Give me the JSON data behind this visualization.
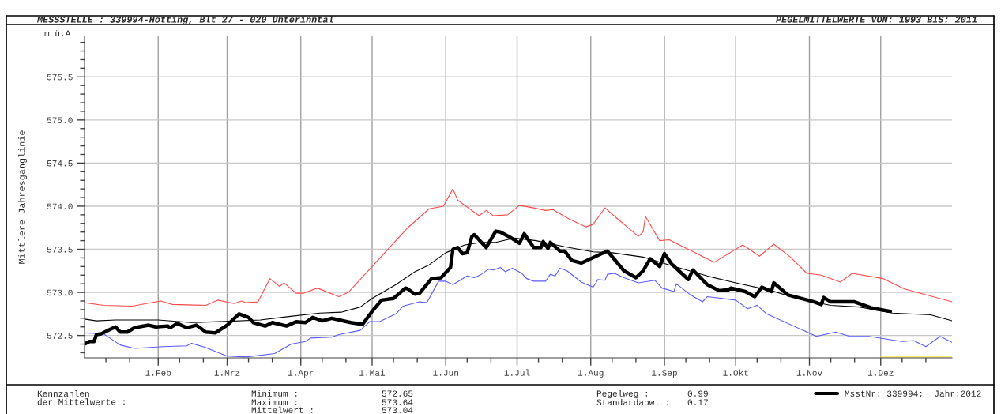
{
  "chart_data": {
    "type": "line",
    "title": "MESSSTELLE : 339994-Hötting, Blt 27 - 020 Unterinntal",
    "subtitle": "PEGELMITTELWERTE VON: 1993 BIS: 2011",
    "ylabel": "Mittlere Jahresganglinie",
    "annotations": [
      "m ü.A",
      "Kennzahlen\nder Mittelwerte :",
      "Minimum :",
      "572.65",
      "Maximum :",
      "573.64",
      "Mittelwert :",
      "573.04",
      "Pegelweg :",
      "0.99",
      "Standardabw. :",
      "0.17"
    ],
    "xlim": [
      "2012-01-01",
      "2012-12-31"
    ],
    "xticks": [
      {
        "value": "2012-01-10",
        "label": null
      },
      {
        "value": "2012-01-20",
        "label": null
      },
      {
        "value": "2012-02-01",
        "label": "1.Feb"
      },
      {
        "value": "2012-02-10",
        "label": null
      },
      {
        "value": "2012-02-20",
        "label": null
      },
      {
        "value": "2012-03-01",
        "label": "1.Mrz"
      },
      {
        "value": "2012-03-10",
        "label": null
      },
      {
        "value": "2012-03-20",
        "label": null
      },
      {
        "value": "2012-04-01",
        "label": "1.Apr"
      },
      {
        "value": "2012-04-10",
        "label": null
      },
      {
        "value": "2012-04-20",
        "label": null
      },
      {
        "value": "2012-05-01",
        "label": "1.Mai"
      },
      {
        "value": "2012-05-10",
        "label": null
      },
      {
        "value": "2012-05-20",
        "label": null
      },
      {
        "value": "2012-06-01",
        "label": "1.Jun"
      },
      {
        "value": "2012-06-10",
        "label": null
      },
      {
        "value": "2012-06-20",
        "label": null
      },
      {
        "value": "2012-07-01",
        "label": "1.Jul"
      },
      {
        "value": "2012-07-10",
        "label": null
      },
      {
        "value": "2012-07-20",
        "label": null
      },
      {
        "value": "2012-08-01",
        "label": "1.Aug"
      },
      {
        "value": "2012-08-10",
        "label": null
      },
      {
        "value": "2012-08-20",
        "label": null
      },
      {
        "value": "2012-09-01",
        "label": "1.Sep"
      },
      {
        "value": "2012-09-10",
        "label": null
      },
      {
        "value": "2012-09-20",
        "label": null
      },
      {
        "value": "2012-10-01",
        "label": "1.Okt"
      },
      {
        "value": "2012-10-10",
        "label": null
      },
      {
        "value": "2012-10-20",
        "label": null
      },
      {
        "value": "2012-11-01",
        "label": "1.Nov"
      },
      {
        "value": "2012-11-10",
        "label": null
      },
      {
        "value": "2012-11-20",
        "label": null
      },
      {
        "value": "2012-12-01",
        "label": "1.Dez"
      },
      {
        "value": "2012-12-10",
        "label": null
      },
      {
        "value": "2012-12-20",
        "label": null
      }
    ],
    "ylim": [
      572.24,
      575.97
    ],
    "yticks": [
      {
        "value": 572.3,
        "label": null
      },
      {
        "value": 572.4,
        "label": null
      },
      572.5,
      {
        "value": 572.6,
        "label": null
      },
      {
        "value": 572.7,
        "label": null
      },
      {
        "value": 572.8,
        "label": null
      },
      {
        "value": 572.9,
        "label": null
      },
      {
        "value": 573.0,
        "label": "573.0"
      },
      {
        "value": 573.1,
        "label": null
      },
      {
        "value": 573.2,
        "label": null
      },
      {
        "value": 573.3,
        "label": null
      },
      {
        "value": 573.4,
        "label": null
      },
      573.5,
      {
        "value": 573.6,
        "label": null
      },
      {
        "value": 573.7,
        "label": null
      },
      {
        "value": 573.8,
        "label": null
      },
      {
        "value": 573.9,
        "label": null
      },
      {
        "value": 574.0,
        "label": "574.0"
      },
      {
        "value": 574.1,
        "label": null
      },
      {
        "value": 574.2,
        "label": null
      },
      {
        "value": 574.3,
        "label": null
      },
      {
        "value": 574.4,
        "label": null
      },
      574.5,
      {
        "value": 574.6,
        "label": null
      },
      {
        "value": 574.7,
        "label": null
      },
      {
        "value": 574.8,
        "label": null
      },
      {
        "value": 574.9,
        "label": null
      },
      {
        "value": 575.0,
        "label": "575.0"
      },
      {
        "value": 575.1,
        "label": null
      },
      {
        "value": 575.2,
        "label": null
      },
      {
        "value": 575.3,
        "label": null
      },
      {
        "value": 575.4,
        "label": null
      },
      575.5,
      {
        "value": 575.6,
        "label": null
      },
      {
        "value": 575.7,
        "label": null
      },
      {
        "value": 575.8,
        "label": null
      },
      {
        "value": 575.9,
        "label": null
      }
    ],
    "grid": true,
    "legend": "bottom right",
    "series": [
      {
        "color": "#ffe84a",
        "x": [
          "2012-12-01",
          "2012-12-31"
        ],
        "values": [
          572.25,
          572.25
        ]
      },
      {
        "color": "#ff4a4a",
        "x": [
          "2012-01-01",
          "2012-01-09",
          "2012-01-21",
          "2012-02-02",
          "2012-02-07",
          "2012-02-21",
          "2012-02-26",
          "2012-03-04",
          "2012-03-07",
          "2012-03-09",
          "2012-03-14",
          "2012-03-19",
          "2012-03-23",
          "2012-03-25",
          "2012-03-30",
          "2012-04-02",
          "2012-04-08",
          "2012-04-17",
          "2012-04-21",
          "2012-04-30",
          "2012-05-16",
          "2012-05-25",
          "2012-05-31",
          "2012-06-04",
          "2012-06-06",
          "2012-06-15",
          "2012-06-18",
          "2012-06-21",
          "2012-06-27",
          "2012-07-02",
          "2012-07-08",
          "2012-07-13",
          "2012-07-16",
          "2012-07-23",
          "2012-07-30",
          "2012-08-02",
          "2012-08-07",
          "2012-08-12",
          "2012-08-21",
          "2012-08-23",
          "2012-08-24",
          "2012-08-30",
          "2012-09-03",
          "2012-09-22",
          "2012-10-04",
          "2012-10-11",
          "2012-10-17",
          "2012-10-24",
          "2012-10-31",
          "2012-11-06",
          "2012-11-14",
          "2012-11-19",
          "2012-12-02",
          "2012-12-05",
          "2012-12-11",
          "2012-12-31"
        ],
        "values": [
          572.88,
          572.85,
          572.84,
          572.9,
          572.86,
          572.85,
          572.91,
          572.87,
          572.9,
          572.88,
          572.89,
          573.16,
          573.07,
          573.11,
          572.99,
          572.99,
          573.05,
          572.95,
          573.0,
          573.27,
          573.75,
          573.97,
          574.0,
          574.2,
          574.07,
          573.89,
          573.95,
          573.89,
          573.9,
          574.01,
          573.98,
          573.95,
          573.96,
          573.85,
          573.76,
          573.79,
          573.98,
          573.86,
          573.65,
          573.7,
          573.88,
          573.6,
          573.61,
          573.35,
          573.55,
          573.42,
          573.56,
          573.41,
          573.22,
          573.2,
          573.12,
          573.22,
          573.16,
          573.12,
          573.04,
          572.89
        ]
      },
      {
        "color": "#000000",
        "x": [
          "2012-01-01",
          "2012-01-06",
          "2012-01-14",
          "2012-02-01",
          "2012-02-15",
          "2012-02-27",
          "2012-03-15",
          "2012-03-27",
          "2012-04-09",
          "2012-04-18",
          "2012-04-26",
          "2012-05-01",
          "2012-05-11",
          "2012-05-19",
          "2012-05-25",
          "2012-06-01",
          "2012-06-09",
          "2012-06-16",
          "2012-06-22",
          "2012-06-30",
          "2012-07-09",
          "2012-07-21",
          "2012-08-02",
          "2012-08-10",
          "2012-08-23",
          "2012-09-04",
          "2012-09-19",
          "2012-10-01",
          "2012-10-16",
          "2012-10-28",
          "2012-11-10",
          "2012-11-22",
          "2012-12-06",
          "2012-12-22",
          "2012-12-31"
        ],
        "values": [
          572.69,
          572.67,
          572.68,
          572.68,
          572.65,
          572.66,
          572.68,
          572.72,
          572.76,
          572.77,
          572.83,
          572.93,
          573.09,
          573.24,
          573.32,
          573.46,
          573.55,
          573.58,
          573.58,
          573.63,
          573.6,
          573.53,
          573.47,
          573.46,
          573.41,
          573.31,
          573.19,
          573.11,
          573.02,
          572.92,
          572.85,
          572.83,
          572.76,
          572.74,
          572.67
        ]
      },
      {
        "color": "#5a5aff",
        "x": [
          "2012-01-01",
          "2012-01-09",
          "2012-01-16",
          "2012-01-22",
          "2012-02-03",
          "2012-02-13",
          "2012-02-15",
          "2012-02-21",
          "2012-03-01",
          "2012-03-09",
          "2012-03-21",
          "2012-03-28",
          "2012-04-03",
          "2012-04-05",
          "2012-04-14",
          "2012-04-17",
          "2012-04-26",
          "2012-04-30",
          "2012-05-04",
          "2012-05-11",
          "2012-05-14",
          "2012-05-21",
          "2012-05-24",
          "2012-05-29",
          "2012-06-01",
          "2012-06-04",
          "2012-06-10",
          "2012-06-13",
          "2012-06-16",
          "2012-06-19",
          "2012-06-21",
          "2012-06-24",
          "2012-06-26",
          "2012-06-29",
          "2012-07-03",
          "2012-07-05",
          "2012-07-08",
          "2012-07-13",
          "2012-07-15",
          "2012-07-17",
          "2012-07-19",
          "2012-07-22",
          "2012-07-28",
          "2012-08-02",
          "2012-08-04",
          "2012-08-07",
          "2012-08-08",
          "2012-08-11",
          "2012-08-15",
          "2012-08-21",
          "2012-08-28",
          "2012-08-31",
          "2012-09-05",
          "2012-09-06",
          "2012-09-12",
          "2012-09-17",
          "2012-09-19",
          "2012-10-01",
          "2012-10-06",
          "2012-10-10",
          "2012-10-14",
          "2012-11-04",
          "2012-11-12",
          "2012-11-18",
          "2012-11-26",
          "2012-12-10",
          "2012-12-15",
          "2012-12-20",
          "2012-12-26",
          "2012-12-31"
        ],
        "values": [
          572.53,
          572.52,
          572.39,
          572.35,
          572.37,
          572.38,
          572.41,
          572.36,
          572.26,
          572.25,
          572.29,
          572.4,
          572.43,
          572.47,
          572.48,
          572.51,
          572.56,
          572.66,
          572.66,
          572.75,
          572.84,
          572.89,
          572.88,
          573.13,
          573.13,
          573.09,
          573.19,
          573.17,
          573.21,
          573.27,
          573.26,
          573.29,
          573.24,
          573.28,
          573.22,
          573.16,
          573.13,
          573.13,
          573.21,
          573.19,
          573.28,
          573.25,
          573.12,
          573.06,
          573.15,
          573.14,
          573.21,
          573.22,
          573.17,
          573.11,
          573.14,
          573.05,
          573.01,
          573.1,
          572.97,
          572.89,
          572.95,
          572.91,
          572.81,
          572.85,
          572.75,
          572.49,
          572.54,
          572.49,
          572.49,
          572.43,
          572.44,
          572.37,
          572.49,
          572.42
        ]
      },
      {
        "name": "MsstNr: 339994;  Jahr:2012",
        "color": "#000000",
        "x": [
          "2012-01-01",
          "2012-01-03",
          "2012-01-05",
          "2012-01-06",
          "2012-01-08",
          "2012-01-11",
          "2012-01-14",
          "2012-01-16",
          "2012-01-19",
          "2012-01-22",
          "2012-01-28",
          "2012-01-31",
          "2012-02-05",
          "2012-02-06",
          "2012-02-09",
          "2012-02-13",
          "2012-02-17",
          "2012-02-21",
          "2012-02-25",
          "2012-03-01",
          "2012-03-06",
          "2012-03-10",
          "2012-03-12",
          "2012-03-17",
          "2012-03-20",
          "2012-03-26",
          "2012-03-30",
          "2012-04-03",
          "2012-04-06",
          "2012-04-10",
          "2012-04-14",
          "2012-04-22",
          "2012-04-27",
          "2012-05-01",
          "2012-05-05",
          "2012-05-10",
          "2012-05-15",
          "2012-05-16",
          "2012-05-19",
          "2012-05-21",
          "2012-05-26",
          "2012-05-30",
          "2012-06-03",
          "2012-06-04",
          "2012-06-06",
          "2012-06-08",
          "2012-06-10",
          "2012-06-12",
          "2012-06-13",
          "2012-06-18",
          "2012-06-22",
          "2012-06-24",
          "2012-06-28",
          "2012-07-02",
          "2012-07-04",
          "2012-07-08",
          "2012-07-11",
          "2012-07-12",
          "2012-07-14",
          "2012-07-15",
          "2012-07-19",
          "2012-07-21",
          "2012-07-24",
          "2012-07-28",
          "2012-08-08",
          "2012-08-15",
          "2012-08-20",
          "2012-08-23",
          "2012-08-26",
          "2012-08-30",
          "2012-09-01",
          "2012-09-04",
          "2012-09-11",
          "2012-09-13",
          "2012-09-19",
          "2012-09-24",
          "2012-09-28",
          "2012-09-29",
          "2012-10-05",
          "2012-10-09",
          "2012-10-12",
          "2012-10-16",
          "2012-10-17",
          "2012-10-23",
          "2012-11-03",
          "2012-11-06",
          "2012-11-07",
          "2012-11-10",
          "2012-11-20",
          "2012-11-27",
          "2012-12-05"
        ],
        "values": [
          572.4,
          572.43,
          572.43,
          572.51,
          572.52,
          572.56,
          572.6,
          572.54,
          572.54,
          572.59,
          572.62,
          572.6,
          572.61,
          572.59,
          572.64,
          572.59,
          572.62,
          572.54,
          572.53,
          572.62,
          572.75,
          572.71,
          572.65,
          572.61,
          572.65,
          572.61,
          572.66,
          572.65,
          572.71,
          572.67,
          572.7,
          572.65,
          572.63,
          572.78,
          572.91,
          572.93,
          573.05,
          573.04,
          572.98,
          572.99,
          573.16,
          573.17,
          573.29,
          573.5,
          573.52,
          573.45,
          573.46,
          573.65,
          573.67,
          573.52,
          573.71,
          573.7,
          573.64,
          573.57,
          573.68,
          573.52,
          573.52,
          573.59,
          573.51,
          573.58,
          573.48,
          573.48,
          573.37,
          573.34,
          573.48,
          573.25,
          573.17,
          573.25,
          573.39,
          573.3,
          573.45,
          573.33,
          573.15,
          573.26,
          573.09,
          573.02,
          573.03,
          573.05,
          573.01,
          572.95,
          573.06,
          573.01,
          573.11,
          572.97,
          572.89,
          572.86,
          572.94,
          572.89,
          572.89,
          572.82,
          572.78
        ]
      }
    ]
  }
}
